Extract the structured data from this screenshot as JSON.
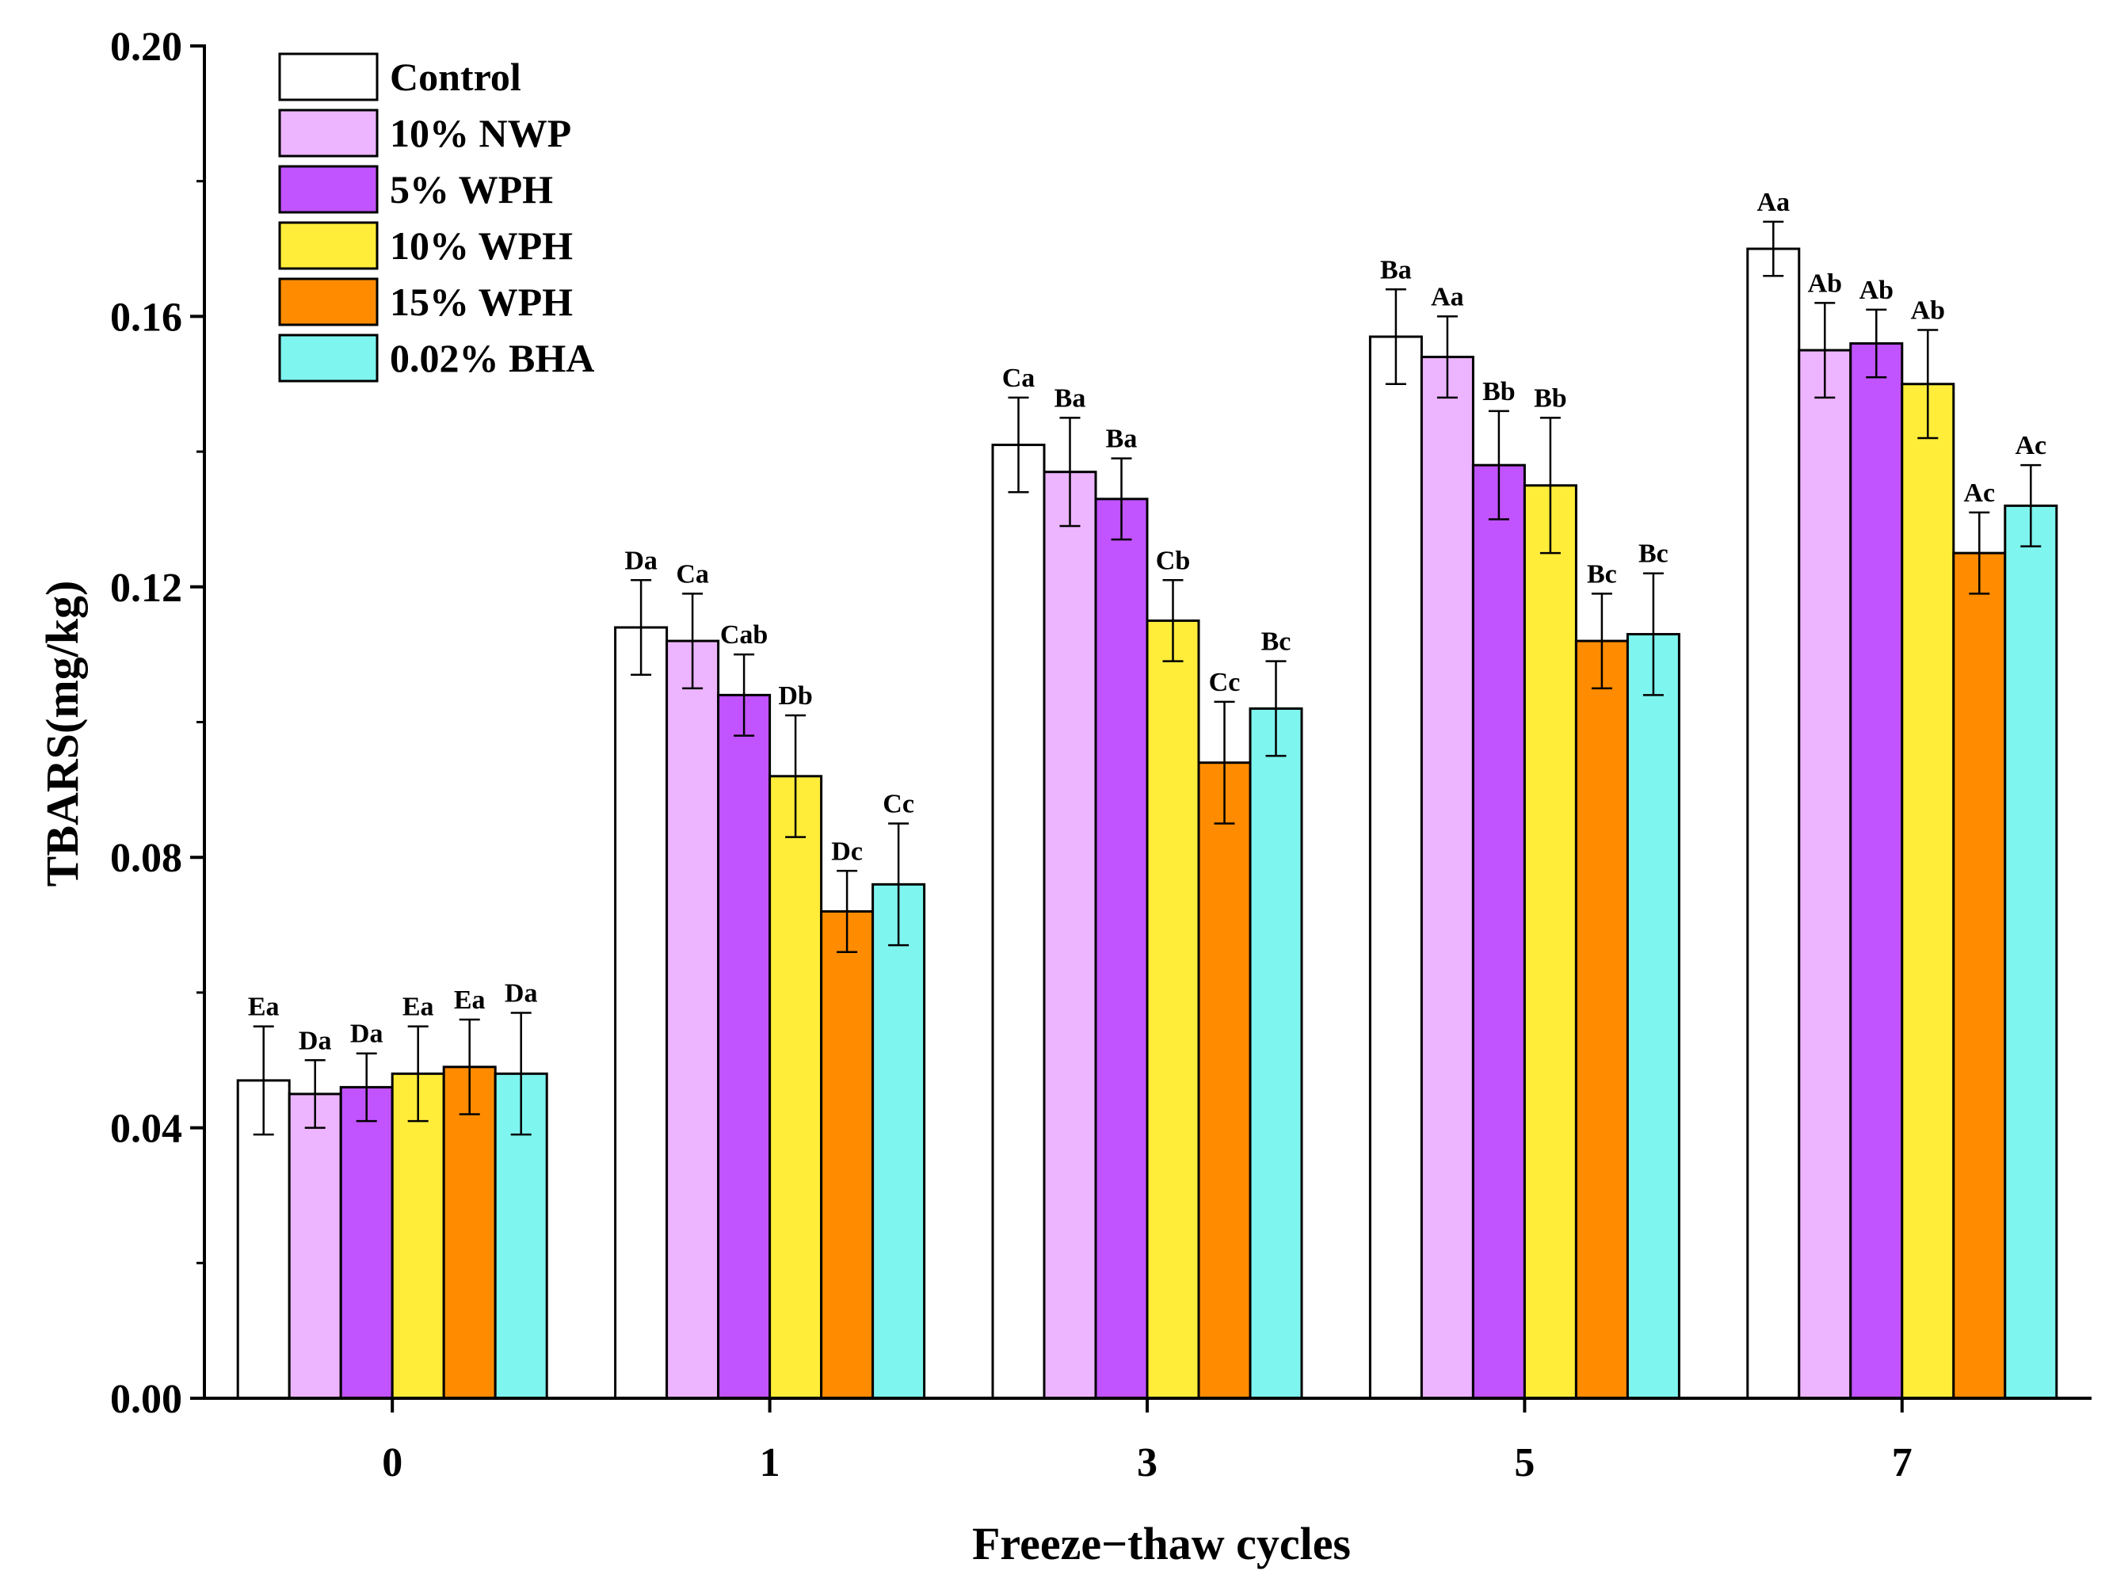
{
  "chart_data": {
    "type": "bar",
    "title": "",
    "xlabel": "Freeze−thaw cycles",
    "ylabel": "TBARS(mg/kg)",
    "ylim": [
      0,
      0.2
    ],
    "yticks": [
      "0.00",
      "0.04",
      "0.08",
      "0.12",
      "0.16",
      "0.20"
    ],
    "categories": [
      "0",
      "1",
      "3",
      "5",
      "7"
    ],
    "legend_position": "top-left",
    "series": [
      {
        "name": "Control",
        "color": "#ffffff",
        "values": [
          0.047,
          0.114,
          0.141,
          0.157,
          0.17
        ],
        "errors": [
          0.008,
          0.007,
          0.007,
          0.007,
          0.004
        ],
        "labels": [
          "Ea",
          "Da",
          "Ca",
          "Ba",
          "Aa"
        ]
      },
      {
        "name": "10% NWP",
        "color": "#edb5ff",
        "values": [
          0.045,
          0.112,
          0.137,
          0.154,
          0.155
        ],
        "errors": [
          0.005,
          0.007,
          0.008,
          0.006,
          0.007
        ],
        "labels": [
          "Da",
          "Ca",
          "Ba",
          "Aa",
          "Ab"
        ]
      },
      {
        "name": "5%  WPH",
        "color": "#c154ff",
        "values": [
          0.046,
          0.104,
          0.133,
          0.138,
          0.156
        ],
        "errors": [
          0.005,
          0.006,
          0.006,
          0.008,
          0.005
        ],
        "labels": [
          "Da",
          "Cab",
          "Ba",
          "Bb",
          "Ab"
        ]
      },
      {
        "name": "10% WPH",
        "color": "#ffed3a",
        "values": [
          0.048,
          0.092,
          0.115,
          0.135,
          0.15
        ],
        "errors": [
          0.007,
          0.009,
          0.006,
          0.01,
          0.008
        ],
        "labels": [
          "Ea",
          "Db",
          "Cb",
          "Bb",
          "Ab"
        ]
      },
      {
        "name": "15% WPH",
        "color": "#ff8c00",
        "values": [
          0.049,
          0.072,
          0.094,
          0.112,
          0.125
        ],
        "errors": [
          0.007,
          0.006,
          0.009,
          0.007,
          0.006
        ],
        "labels": [
          "Ea",
          "Dc",
          "Cc",
          "Bc",
          "Ac"
        ]
      },
      {
        "name": "0.02% BHA",
        "color": "#7ff5ef",
        "values": [
          0.048,
          0.076,
          0.102,
          0.113,
          0.132
        ],
        "errors": [
          0.009,
          0.009,
          0.007,
          0.009,
          0.006
        ],
        "labels": [
          "Da",
          "Cc",
          "Bc",
          "Bc",
          "Ac"
        ]
      }
    ]
  }
}
